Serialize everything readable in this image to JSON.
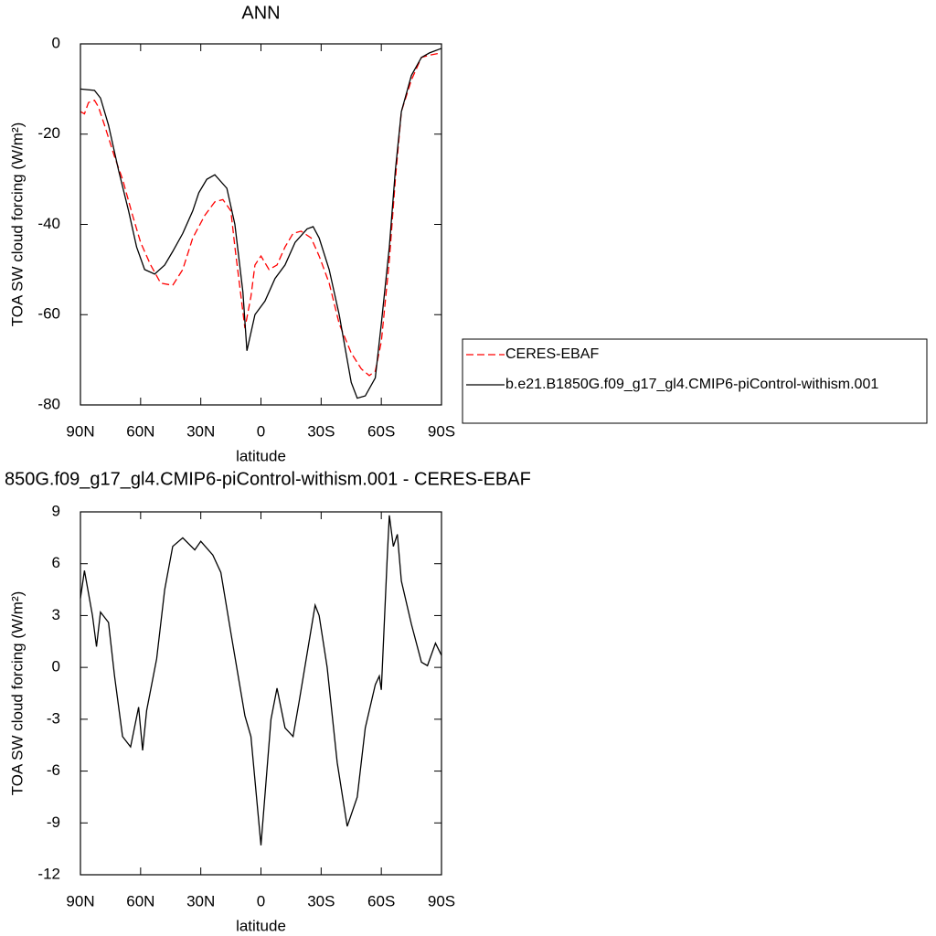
{
  "chart_data": [
    {
      "type": "line",
      "title": "ANN",
      "xlabel": "latitude",
      "ylabel": "TOA SW cloud forcing (W/m²)",
      "xlim": [
        90,
        -90
      ],
      "xticks": [
        {
          "value": 90,
          "label": "90N"
        },
        {
          "value": 60,
          "label": "60N"
        },
        {
          "value": 30,
          "label": "30N"
        },
        0,
        {
          "value": -30,
          "label": "30S"
        },
        {
          "value": -60,
          "label": "60S"
        },
        {
          "value": -90,
          "label": "90S"
        }
      ],
      "ylim": [
        -80,
        0
      ],
      "yticks": [
        0,
        -20,
        -40,
        -60,
        -80
      ],
      "legend": "right",
      "series": [
        {
          "name": "CERES-EBAF",
          "color": "#ff0000",
          "dash": true,
          "x": [
            90,
            88,
            86,
            83,
            81,
            78,
            73,
            69,
            64,
            60,
            55,
            50,
            44,
            39,
            34,
            28,
            23,
            19,
            15,
            13,
            8,
            5,
            3,
            0,
            -4,
            -8,
            -12,
            -16,
            -20,
            -25,
            -29,
            -34,
            -39,
            -45,
            -50,
            -54,
            -57,
            -60,
            -64,
            -67,
            -70,
            -75,
            -80,
            -84,
            -90
          ],
          "values": [
            -15,
            -15.5,
            -13,
            -12.5,
            -14,
            -18,
            -25,
            -30,
            -38,
            -44,
            -49,
            -53,
            -53.5,
            -50,
            -43,
            -38,
            -35,
            -34.5,
            -37,
            -45,
            -63,
            -56,
            -49,
            -47,
            -50,
            -49,
            -45,
            -42,
            -41.5,
            -43,
            -47,
            -53,
            -62,
            -68.5,
            -72,
            -73.5,
            -72.5,
            -66,
            -48,
            -30,
            -15,
            -8,
            -3,
            -2.5,
            -2
          ]
        },
        {
          "name": "b.e21.B1850G.f09_g17_gl4.CMIP6-piControl-withism.001",
          "color": "#000000",
          "dash": false,
          "x": [
            90,
            83,
            80,
            76,
            71,
            66,
            62,
            58,
            53,
            48,
            44,
            39,
            34,
            31,
            27,
            23,
            17,
            13,
            9,
            7,
            3,
            -2,
            -7,
            -12,
            -17,
            -23,
            -26,
            -29,
            -34,
            -39,
            -45,
            -48,
            -52,
            -57,
            -60,
            -64,
            -67,
            -70,
            -75,
            -80,
            -84,
            -90
          ],
          "values": [
            -10,
            -10.3,
            -12,
            -18,
            -28,
            -37,
            -45,
            -50,
            -51,
            -49,
            -46,
            -42,
            -37,
            -33,
            -30,
            -29,
            -32,
            -40,
            -55,
            -68,
            -60,
            -57,
            -52,
            -49,
            -44,
            -41,
            -40.5,
            -43,
            -50,
            -60,
            -75,
            -78.5,
            -78,
            -74,
            -62,
            -45,
            -28,
            -15,
            -7,
            -3,
            -2,
            -1
          ]
        }
      ]
    },
    {
      "type": "line",
      "title": "850G.f09_g17_gl4.CMIP6-piControl-withism.001 - CERES-EBAF",
      "xlabel": "latitude",
      "ylabel": "TOA SW cloud forcing (W/m²)",
      "xlim": [
        90,
        -90
      ],
      "xticks": [
        {
          "value": 90,
          "label": "90N"
        },
        {
          "value": 60,
          "label": "60N"
        },
        {
          "value": 30,
          "label": "30N"
        },
        0,
        {
          "value": -30,
          "label": "30S"
        },
        {
          "value": -60,
          "label": "60S"
        },
        {
          "value": -90,
          "label": "90S"
        }
      ],
      "ylim": [
        -12,
        9
      ],
      "yticks": [
        9,
        6,
        3,
        0,
        -3,
        -6,
        -9,
        -12
      ],
      "series": [
        {
          "color": "#000000",
          "dash": false,
          "x": [
            90,
            88,
            84,
            82,
            80,
            76,
            73,
            69,
            65,
            61,
            59,
            57,
            52,
            48,
            44,
            39,
            33,
            30,
            24,
            20,
            15,
            8,
            5,
            0,
            -5,
            -8,
            -12,
            -16,
            -19,
            -27,
            -29,
            -33,
            -38,
            -43,
            -48,
            -52,
            -57,
            -59,
            -60,
            -63,
            -64,
            -66,
            -68,
            -70,
            -75,
            -80,
            -83,
            -87,
            -90
          ],
          "values": [
            4,
            5.6,
            3,
            1.2,
            3.2,
            2.6,
            -0.5,
            -4,
            -4.6,
            -2.3,
            -4.8,
            -2.5,
            0.5,
            4.5,
            7,
            7.5,
            6.8,
            7.3,
            6.5,
            5.5,
            2,
            -2.8,
            -4,
            -10.3,
            -3,
            -1.2,
            -3.5,
            -4,
            -2,
            3.6,
            3,
            0,
            -5.5,
            -9.2,
            -7.5,
            -3.5,
            -1,
            -0.5,
            -1.3,
            6.5,
            8.8,
            7,
            7.7,
            5,
            2.5,
            0.3,
            0.1,
            1.4,
            0.7
          ]
        }
      ]
    }
  ]
}
